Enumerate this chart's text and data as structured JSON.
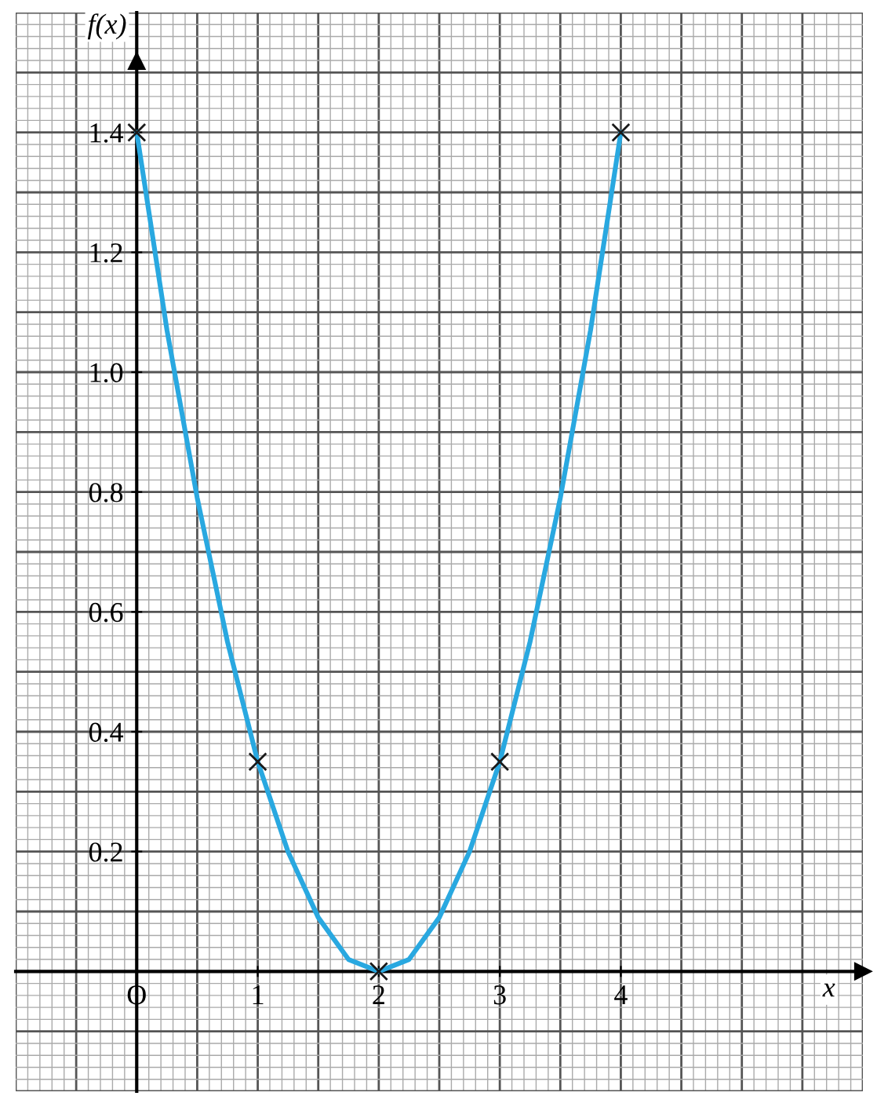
{
  "chart_data": {
    "type": "line",
    "xlabel": "x",
    "ylabel": "f(x)",
    "xlim": [
      -1,
      6
    ],
    "ylim": [
      -0.2,
      1.6
    ],
    "xticks": [
      {
        "value": 0,
        "label": "O"
      },
      1,
      2,
      3,
      4
    ],
    "yticks": [
      0.2,
      0.4,
      0.6,
      0.8,
      {
        "value": 1,
        "label": "1.0"
      },
      1.2,
      1.4
    ],
    "grid": true,
    "series": [
      {
        "color": "#29a8e0",
        "marker": "none",
        "line_style": "solid",
        "x": [
          0,
          0.25,
          0.5,
          0.75,
          1,
          1.25,
          1.5,
          1.75,
          2,
          2.25,
          2.5,
          2.75,
          3,
          3.25,
          3.5,
          3.75,
          4
        ],
        "values": [
          1.4,
          1.07,
          0.79,
          0.55,
          0.35,
          0.2,
          0.09,
          0.02,
          0,
          0.02,
          0.09,
          0.2,
          0.35,
          0.55,
          0.79,
          1.07,
          1.4
        ]
      },
      {
        "type": "scatter",
        "color": "#1a1a1a",
        "marker": "cross",
        "x": [
          0,
          1,
          2,
          3,
          4
        ],
        "values": [
          1.4,
          0.35,
          0,
          0.35,
          1.4
        ]
      }
    ]
  }
}
